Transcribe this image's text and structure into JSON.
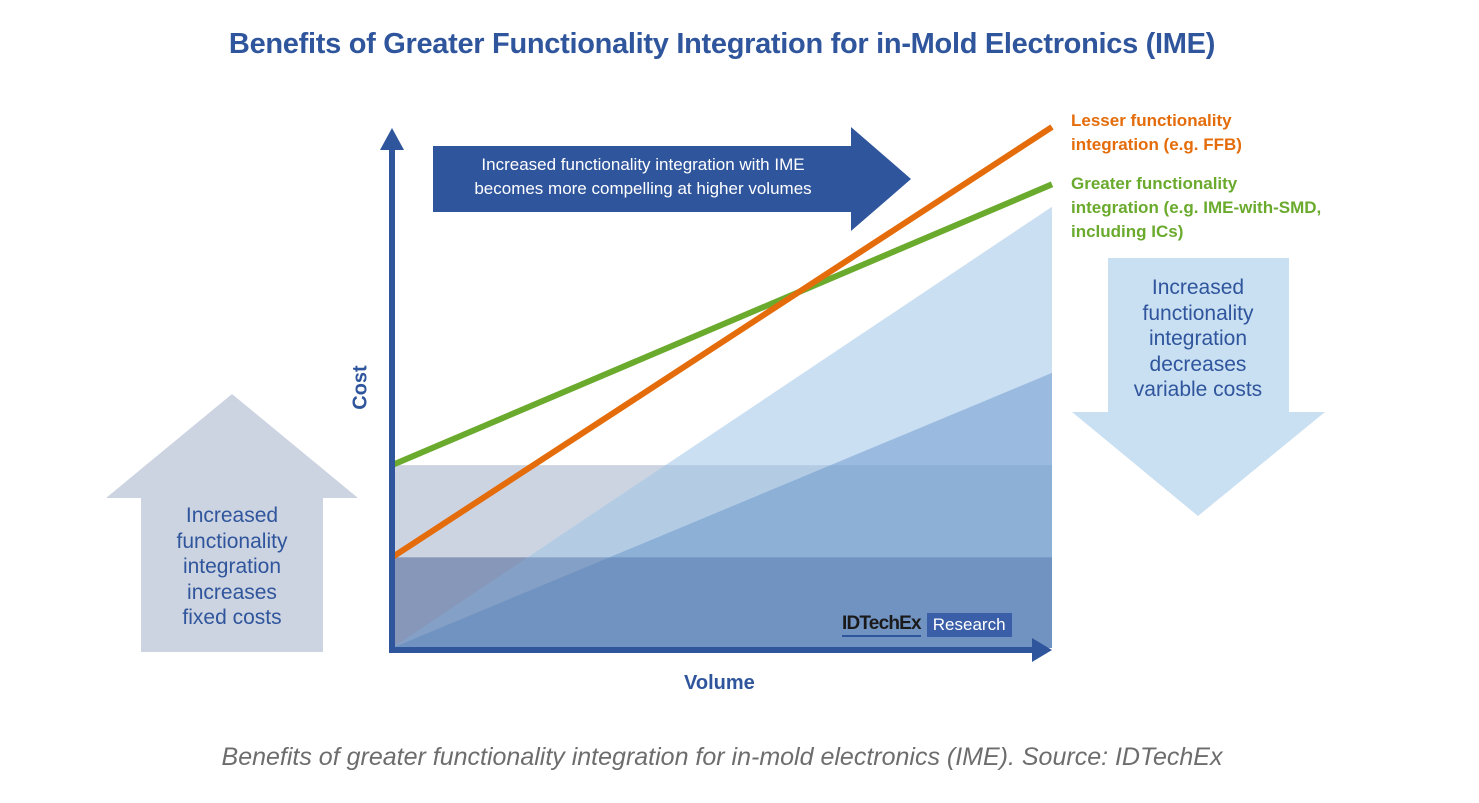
{
  "title": "Benefits of Greater Functionality Integration for in-Mold Electronics (IME)",
  "caption": "Benefits of greater functionality integration for in-mold electronics (IME). Source: IDTechEx",
  "axes": {
    "x_label": "Volume",
    "y_label": "Cost"
  },
  "top_arrow": {
    "text": "Increased functionality integration with IME\nbecomes more compelling at higher volumes"
  },
  "left_arrow": {
    "text": "Increased\nfunctionality\nintegration\nincreases\nfixed costs",
    "direction": "up"
  },
  "right_arrow": {
    "text": "Increased\nfunctionality\nintegration\ndecreases\nvariable costs",
    "direction": "down"
  },
  "legend": {
    "lesser": {
      "text": "Lesser functionality\nintegration (e.g. FFB)",
      "color": "#e46c0a"
    },
    "greater": {
      "text": "Greater functionality\nintegration (e.g. IME-with-SMD,\nincluding ICs)",
      "color": "#6aaa2d"
    }
  },
  "logo": {
    "brand": "IDTechEx",
    "tag": "Research"
  },
  "colors": {
    "axis": "#2f559c",
    "fixed_high": "#cdd4e1",
    "fixed_low": "#a3adc4",
    "variable_high": "#c9dff2",
    "variable_low": "#7fa3cc",
    "arrow_top": "#2f559c",
    "arrow_left": "#cdd4e1",
    "arrow_right": "#c9dff2"
  },
  "model": {
    "x_range": [
      0,
      1
    ],
    "y_range": [
      0,
      1
    ],
    "fixed_cost_greater": 0.351,
    "fixed_cost_lesser": 0.174,
    "variable_end_lesser": 0.847,
    "variable_end_greater": 0.528,
    "total_end_lesser": 1.0,
    "total_end_greater": 0.89
  }
}
